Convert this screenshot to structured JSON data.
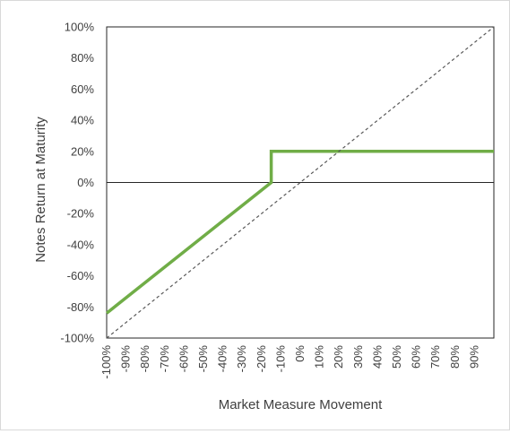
{
  "chart_data": {
    "type": "line",
    "xlabel": "Market Measure Movement",
    "ylabel": "Notes Return at Maturity",
    "xlim": [
      -100,
      100
    ],
    "ylim": [
      -100,
      100
    ],
    "x_ticks": [
      "-100%",
      "-90%",
      "-80%",
      "-70%",
      "-60%",
      "-50%",
      "-40%",
      "-30%",
      "-20%",
      "-10%",
      "0%",
      "10%",
      "20%",
      "30%",
      "40%",
      "50%",
      "60%",
      "70%",
      "80%",
      "90%"
    ],
    "x_tick_values": [
      -100,
      -90,
      -80,
      -70,
      -60,
      -50,
      -40,
      -30,
      -20,
      -10,
      0,
      10,
      20,
      30,
      40,
      50,
      60,
      70,
      80,
      90
    ],
    "y_ticks": [
      "100%",
      "80%",
      "60%",
      "40%",
      "20%",
      "0%",
      "-20%",
      "-40%",
      "-60%",
      "-80%",
      "-100%"
    ],
    "y_tick_values": [
      100,
      80,
      60,
      40,
      20,
      0,
      -20,
      -40,
      -60,
      -80,
      -100
    ],
    "grid": false,
    "series": [
      {
        "style": "solid",
        "color": "#70ad47",
        "x": [
          -100,
          -15,
          -15,
          100
        ],
        "y": [
          -84,
          0,
          20,
          20
        ]
      },
      {
        "style": "dashed",
        "color": "#595959",
        "x": [
          -100,
          100
        ],
        "y": [
          -100,
          100
        ]
      }
    ]
  }
}
